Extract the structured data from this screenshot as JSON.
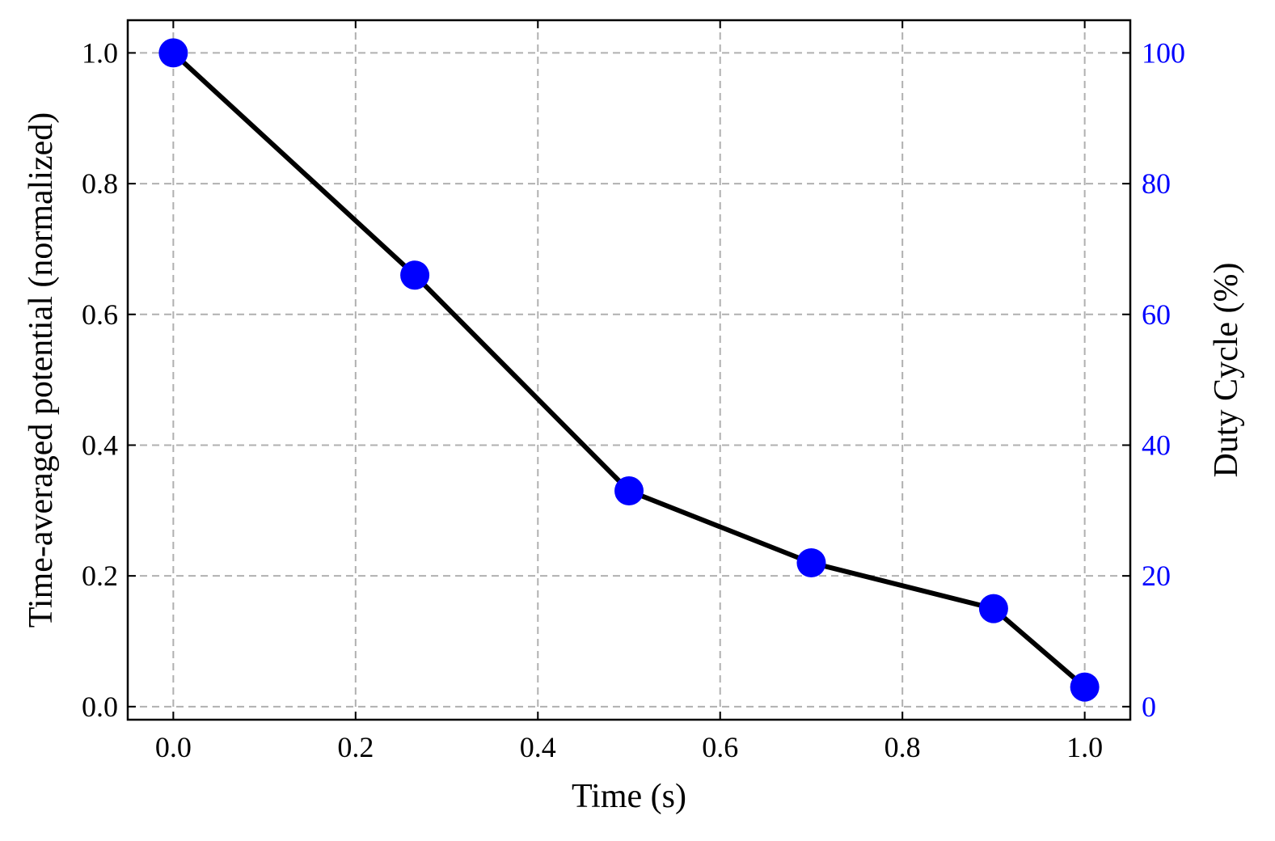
{
  "chart_data": {
    "type": "line",
    "title": "",
    "xlabel": "Time (s)",
    "ylabel": "Time-averaged potential (normalized)",
    "y2label": "Duty Cycle (%)",
    "xlim": [
      -0.05,
      1.05
    ],
    "ylim": [
      -0.02,
      1.05
    ],
    "y2lim": [
      -2,
      105
    ],
    "xticks": [
      "0.0",
      "0.2",
      "0.4",
      "0.6",
      "0.8",
      "1.0"
    ],
    "yticks": [
      "0.0",
      "0.2",
      "0.4",
      "0.6",
      "0.8",
      "1.0"
    ],
    "y2ticks": [
      "0",
      "20",
      "40",
      "60",
      "80",
      "100"
    ],
    "grid": true,
    "colors": {
      "line": "#000000",
      "marker": "#0000ff",
      "right_axis": "#0000ff",
      "grid": "#b0b0b0"
    },
    "series": [
      {
        "x": [
          0.0,
          0.265,
          0.5,
          0.7,
          0.9,
          1.0
        ],
        "values": [
          1.0,
          0.66,
          0.33,
          0.22,
          0.15,
          0.03
        ]
      }
    ]
  }
}
